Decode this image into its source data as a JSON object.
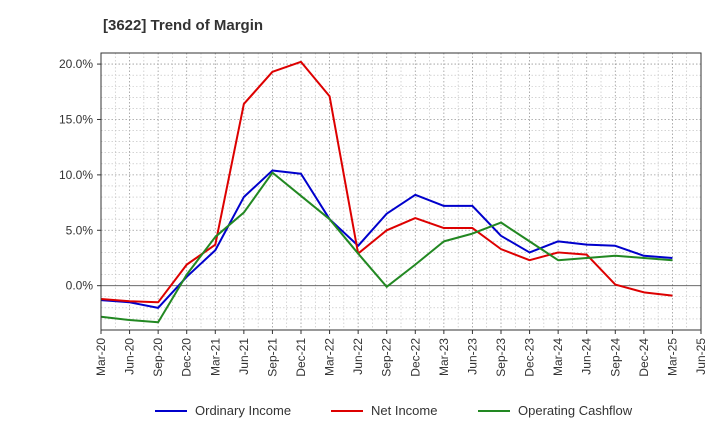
{
  "chart_data": {
    "type": "line",
    "title": "[3622]  Trend of Margin",
    "xlabel": "",
    "ylabel": "",
    "x": [
      "Mar-20",
      "Jun-20",
      "Sep-20",
      "Dec-20",
      "Mar-21",
      "Jun-21",
      "Sep-21",
      "Dec-21",
      "Mar-22",
      "Jun-22",
      "Sep-22",
      "Dec-22",
      "Mar-23",
      "Jun-23",
      "Sep-23",
      "Dec-23",
      "Mar-24",
      "Jun-24",
      "Sep-24",
      "Dec-24",
      "Mar-25",
      "Jun-25"
    ],
    "y_ticks": [
      "0.0%",
      "5.0%",
      "10.0%",
      "15.0%",
      "20.0%"
    ],
    "y_tick_values": [
      0,
      5,
      10,
      15,
      20
    ],
    "ylim": [
      -4,
      21
    ],
    "grid": true,
    "legend_position": "bottom",
    "series": [
      {
        "name": "Ordinary Income",
        "color": "#0000cc",
        "values": [
          -1.3,
          -1.5,
          -2.0,
          0.8,
          3.2,
          8.0,
          10.4,
          10.1,
          6.0,
          3.6,
          6.5,
          8.2,
          7.2,
          7.2,
          4.5,
          3.0,
          4.0,
          3.7,
          3.6,
          2.7,
          2.5,
          null
        ]
      },
      {
        "name": "Net Income",
        "color": "#dd0000",
        "values": [
          -1.2,
          -1.4,
          -1.5,
          1.9,
          3.7,
          16.4,
          19.3,
          20.2,
          17.1,
          2.9,
          5.0,
          6.1,
          5.2,
          5.2,
          3.3,
          2.3,
          3.0,
          2.8,
          0.1,
          -0.6,
          -0.9,
          null
        ]
      },
      {
        "name": "Operating Cashflow",
        "color": "#228822",
        "values": [
          -2.8,
          -3.1,
          -3.3,
          1.0,
          4.4,
          6.6,
          10.2,
          8.1,
          6.0,
          2.9,
          -0.1,
          1.9,
          4.0,
          4.7,
          5.7,
          4.0,
          2.3,
          2.5,
          2.7,
          2.5,
          2.3,
          null
        ]
      }
    ]
  }
}
